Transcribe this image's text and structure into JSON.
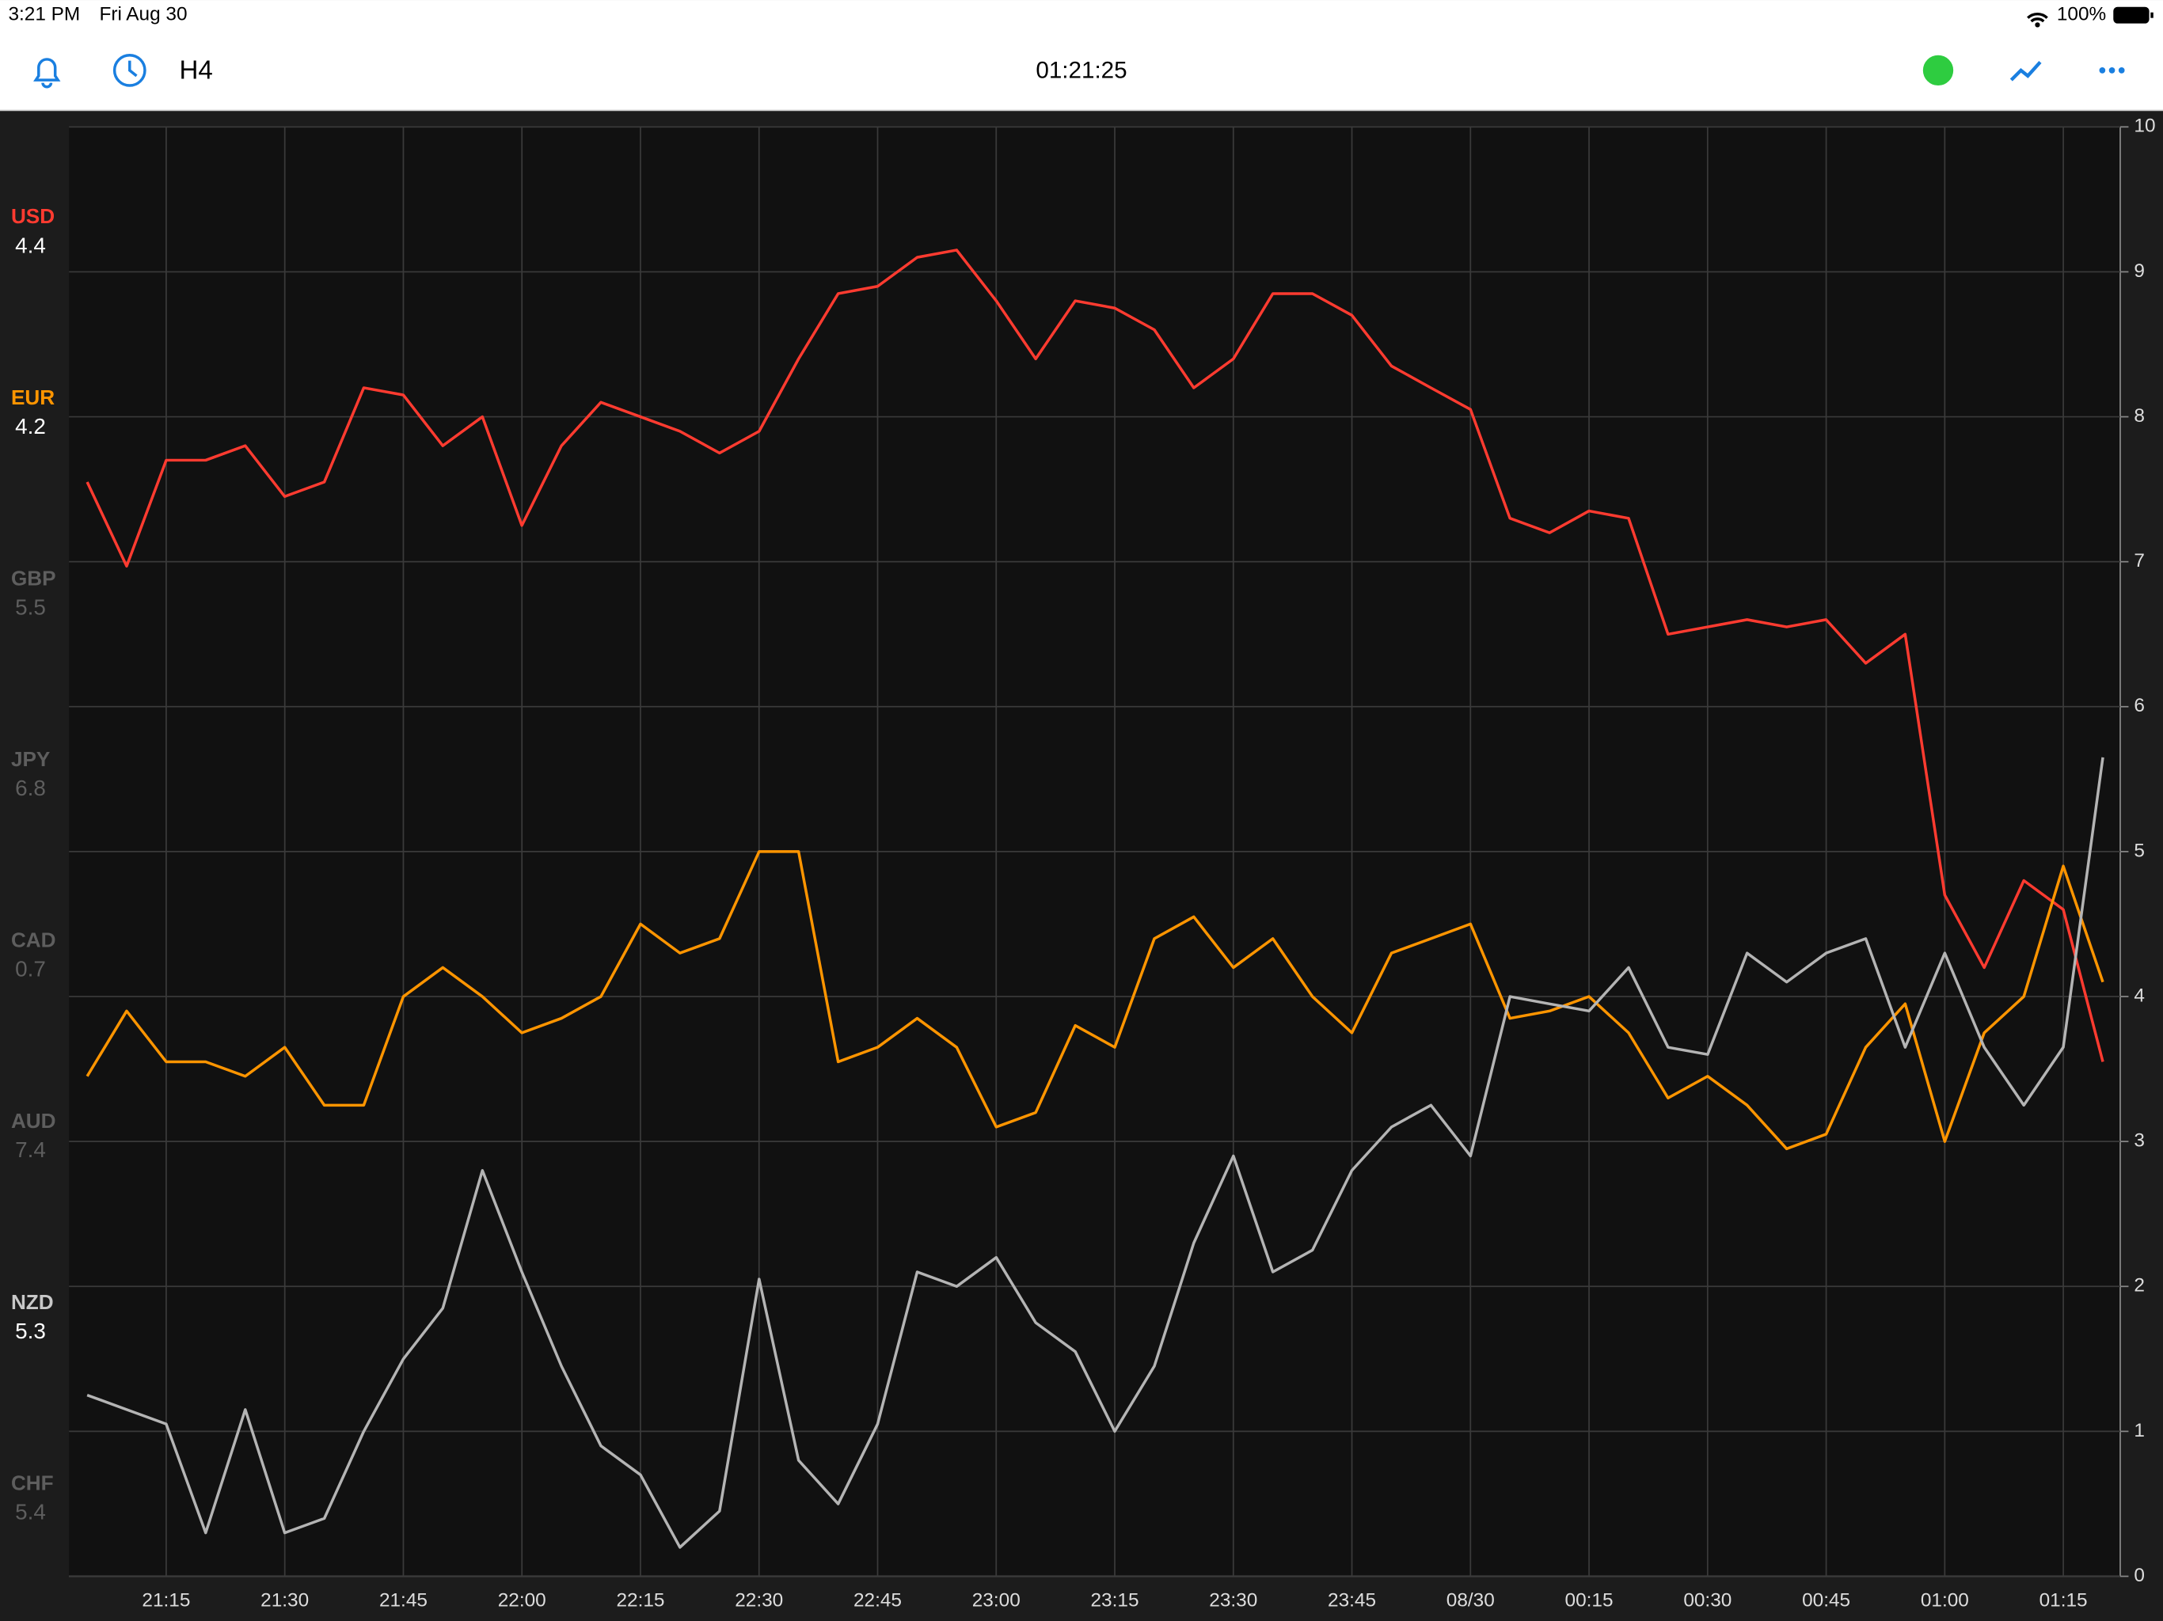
{
  "status_bar": {
    "time": "3:21 PM",
    "date": "Fri Aug 30",
    "battery": "100%"
  },
  "toolbar": {
    "timeframe": "H4",
    "clock": "01:21:25"
  },
  "sidebar": {
    "items": [
      {
        "name": "USD",
        "value": 4.4,
        "color": "#ff3b30",
        "value_color": "#ffffff"
      },
      {
        "name": "EUR",
        "value": 4.2,
        "color": "#ff9500",
        "value_color": "#ffffff"
      },
      {
        "name": "GBP",
        "value": 5.5,
        "color": "#5e5e5e",
        "value_color": "#5e5e5e"
      },
      {
        "name": "JPY",
        "value": 6.8,
        "color": "#5e5e5e",
        "value_color": "#5e5e5e"
      },
      {
        "name": "CAD",
        "value": 0.7,
        "color": "#5e5e5e",
        "value_color": "#5e5e5e"
      },
      {
        "name": "AUD",
        "value": 7.4,
        "color": "#5e5e5e",
        "value_color": "#5e5e5e"
      },
      {
        "name": "NZD",
        "value": 5.3,
        "color": "#c8c8c8",
        "value_color": "#ffffff"
      },
      {
        "name": "CHF",
        "value": 5.4,
        "color": "#5e5e5e",
        "value_color": "#5e5e5e"
      }
    ]
  },
  "chart_data": {
    "type": "line",
    "categories": [
      null,
      null,
      "21:15",
      null,
      null,
      "21:30",
      null,
      null,
      "21:45",
      null,
      null,
      "22:00",
      null,
      null,
      "22:15",
      null,
      null,
      "22:30",
      null,
      null,
      "22:45",
      null,
      null,
      "23:00",
      null,
      null,
      "23:15",
      null,
      null,
      "23:30",
      null,
      null,
      "23:45",
      null,
      null,
      "08/30",
      null,
      null,
      "00:15",
      null,
      null,
      "00:30",
      null,
      null,
      "00:45",
      null,
      null,
      "01:00",
      null,
      null,
      "01:15",
      null
    ],
    "series": [
      {
        "name": "USD",
        "color": "#ff3b30",
        "values": [
          7.55,
          6.97,
          7.7,
          7.7,
          7.8,
          7.45,
          7.55,
          8.2,
          8.15,
          7.8,
          8.0,
          7.25,
          7.8,
          8.1,
          8.0,
          7.9,
          7.75,
          7.9,
          8.4,
          8.85,
          8.9,
          9.1,
          9.15,
          8.8,
          8.4,
          8.8,
          8.75,
          8.6,
          8.2,
          8.4,
          8.85,
          8.85,
          8.7,
          8.35,
          8.2,
          8.05,
          7.3,
          7.2,
          7.35,
          7.3,
          6.5,
          6.55,
          6.6,
          6.55,
          6.6,
          6.3,
          6.5,
          4.7,
          4.2,
          4.8,
          4.6,
          3.55
        ]
      },
      {
        "name": "EUR",
        "color": "#ff9500",
        "values": [
          3.45,
          3.9,
          3.55,
          3.55,
          3.45,
          3.65,
          3.25,
          3.25,
          4.0,
          4.2,
          4.0,
          3.75,
          3.85,
          4.0,
          4.5,
          4.3,
          4.4,
          5.0,
          5.0,
          3.55,
          3.65,
          3.85,
          3.65,
          3.1,
          3.2,
          3.8,
          3.65,
          4.4,
          4.55,
          4.2,
          4.4,
          4.0,
          3.75,
          4.3,
          4.4,
          4.5,
          3.85,
          3.9,
          4.0,
          3.75,
          3.3,
          3.45,
          3.25,
          2.95,
          3.05,
          3.65,
          3.95,
          3.0,
          3.75,
          4.0,
          4.9,
          4.1
        ]
      },
      {
        "name": "NZD",
        "color": "#b4b4b4",
        "values": [
          1.25,
          1.15,
          1.05,
          0.3,
          1.15,
          0.3,
          0.4,
          1.0,
          1.5,
          1.85,
          2.8,
          2.1,
          1.45,
          0.9,
          0.7,
          0.2,
          0.45,
          2.05,
          0.8,
          0.5,
          1.05,
          2.1,
          2.0,
          2.2,
          1.75,
          1.55,
          1.0,
          1.45,
          2.3,
          2.9,
          2.1,
          2.25,
          2.8,
          3.1,
          3.25,
          2.9,
          4.0,
          3.95,
          3.9,
          4.2,
          3.65,
          3.6,
          4.3,
          4.1,
          4.3,
          4.4,
          3.65,
          4.3,
          3.65,
          3.25,
          3.65,
          5.65
        ]
      }
    ],
    "ylim": [
      0,
      10
    ],
    "yticks": [
      0,
      1,
      2,
      3,
      4,
      5,
      6,
      7,
      8,
      9,
      10
    ],
    "grid": true
  }
}
